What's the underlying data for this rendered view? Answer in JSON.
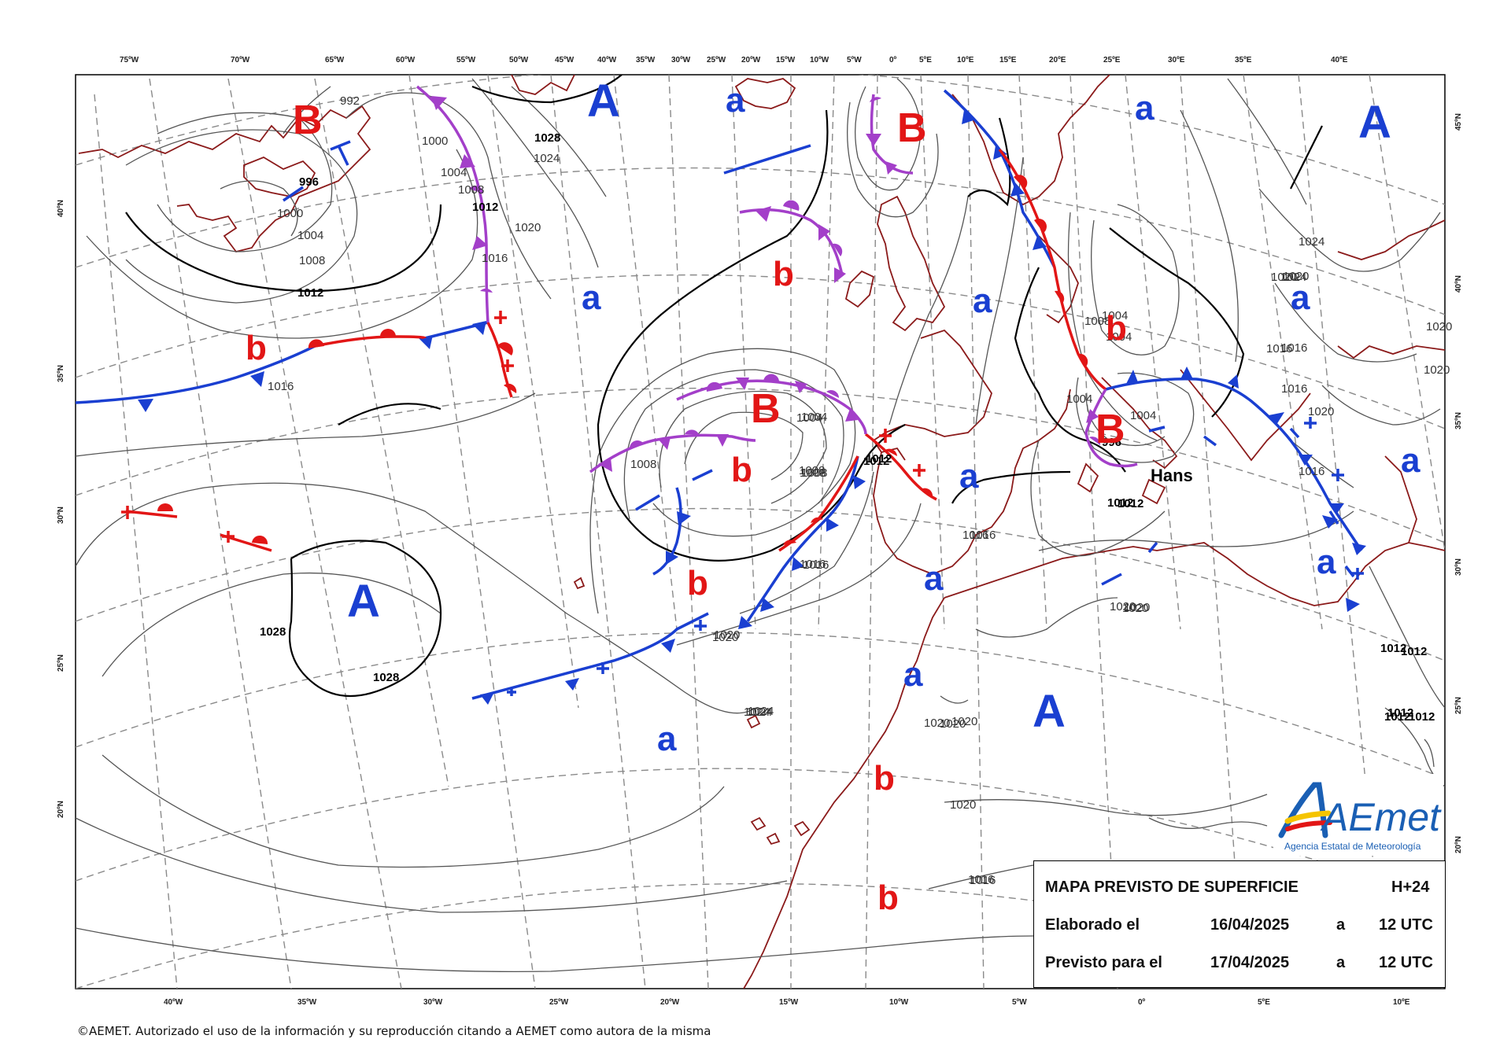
{
  "top_ticks": [
    "75ºW",
    "70ºW",
    "65ºW",
    "60ºW",
    "55ºW",
    "50ºW",
    "45ºW",
    "40ºW",
    "35ºW",
    "30ºW",
    "25ºW",
    "20ºW",
    "15ºW",
    "10ºW",
    "5ºW",
    "0º",
    "5ºE",
    "10ºE",
    "15ºE",
    "20ºE",
    "25ºE",
    "30ºE",
    "35ºE",
    "40ºE"
  ],
  "bottom_ticks": [
    "40ºW",
    "35ºW",
    "30ºW",
    "25ºW",
    "20ºW",
    "15ºW",
    "10ºW",
    "5ºW",
    "0º",
    "5ºE",
    "10ºE"
  ],
  "left_ticks": [
    "40ºN",
    "35ºN",
    "30ºN",
    "25ºN",
    "20ºN"
  ],
  "right_ticks": [
    "45ºN",
    "40ºN",
    "35ºN",
    "30ºN",
    "25ºN",
    "20ºN"
  ],
  "pressure_centers": [
    {
      "symbol": "B",
      "kind": "low-main"
    },
    {
      "symbol": "A",
      "kind": "high-main"
    },
    {
      "symbol": "a",
      "kind": "high-minor"
    },
    {
      "symbol": "B",
      "kind": "low-main"
    },
    {
      "symbol": "A",
      "kind": "high-main"
    },
    {
      "symbol": "a",
      "kind": "high-minor"
    },
    {
      "symbol": "b",
      "kind": "low-minor"
    },
    {
      "symbol": "a",
      "kind": "high-minor"
    },
    {
      "symbol": "a",
      "kind": "high-minor"
    },
    {
      "symbol": "b",
      "kind": "low-minor"
    },
    {
      "symbol": "b",
      "kind": "low-minor"
    },
    {
      "symbol": "B",
      "kind": "low-main"
    },
    {
      "symbol": "a",
      "kind": "high-minor"
    },
    {
      "symbol": "b",
      "kind": "low-minor"
    },
    {
      "symbol": "B",
      "kind": "low-main"
    },
    {
      "symbol": "a",
      "kind": "high-minor"
    },
    {
      "symbol": "a",
      "kind": "high-minor"
    },
    {
      "symbol": "A",
      "kind": "high-main"
    },
    {
      "symbol": "a",
      "kind": "high-minor"
    },
    {
      "symbol": "a",
      "kind": "high-minor"
    },
    {
      "symbol": "a",
      "kind": "high-minor"
    },
    {
      "symbol": "A",
      "kind": "high-main"
    },
    {
      "symbol": "b",
      "kind": "low-minor"
    },
    {
      "symbol": "b",
      "kind": "low-minor"
    },
    {
      "symbol": "a",
      "kind": "high-minor"
    }
  ],
  "isobar_labels": [
    "992",
    "996",
    "1000",
    "1004",
    "1008",
    "1012",
    "1016",
    "1020",
    "1024",
    "1028",
    "1000",
    "1004",
    "1008",
    "1012",
    "1016",
    "1020",
    "1024",
    "1028",
    "1012",
    "1016",
    "1020",
    "1004",
    "1008",
    "1004",
    "1008",
    "1012",
    "1016",
    "1020",
    "1024",
    "1028",
    "1004",
    "1008",
    "1012",
    "1016",
    "1020",
    "1024",
    "1004",
    "1008",
    "1012",
    "1016",
    "1020",
    "1016",
    "1020",
    "1024",
    "1012",
    "1016",
    "1016",
    "1020",
    "1020",
    "1020",
    "1020",
    "1020",
    "1020",
    "1016",
    "996",
    "1004",
    "1004",
    "1008",
    "1012",
    "1016",
    "1020",
    "1012",
    "1012",
    "1012",
    "1024",
    "1016",
    "1020"
  ],
  "storm_name": "Hans",
  "info": {
    "title": "MAPA PREVISTO DE SUPERFICIE",
    "lead": "H+24",
    "row2_label": "Elaborado el",
    "row2_date": "16/04/2025",
    "row2_a": "a",
    "row2_time": "12 UTC",
    "row3_label": "Previsto para el",
    "row3_date": "17/04/2025",
    "row3_a": "a",
    "row3_time": "12 UTC"
  },
  "logo": {
    "brand": "AEmet",
    "subtitle": "Agencia Estatal de Meteorología"
  },
  "copyright": "©AEMET. Autorizado el uso de la información y su reproducción citando a AEMET como autora de la misma",
  "colors": {
    "high": "#1a3fd1",
    "low": "#e21616",
    "cold_front": "#1a3fd1",
    "warm_front": "#e21616",
    "occluded_front": "#a33fc9",
    "coast": "#8b1a1a",
    "grid": "#888888"
  }
}
